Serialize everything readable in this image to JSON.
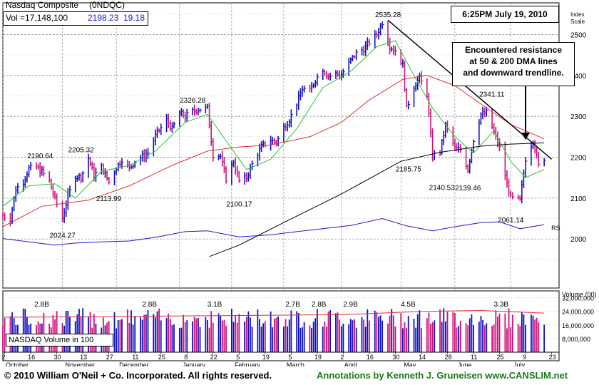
{
  "header": {
    "title": "Nasdaq Composite",
    "symbol": "(0NDQC)",
    "volume_label": "Vol =17,148,100",
    "price": "2198.23",
    "change": "19.18",
    "timestamp": "6:25PM July 19, 2010",
    "index_scale_label": "Index\nScale"
  },
  "note": {
    "line1": "Encountered resistance",
    "line2": "at 50 & 200 DMA lines",
    "line3": "and downward trendline."
  },
  "volume_box_label": "NASDAQ Volume in 100",
  "volume_axis_title": "Volume (00)",
  "footer": {
    "copyright": "© 2010 William O'Neil + Co. Incorporated. All rights reserved.",
    "annotation": "Annotations by Kenneth J. Gruneisen www.CANSLIM.net"
  },
  "colors": {
    "up_bar": "#1010c0",
    "down_bar": "#d0107a",
    "ma50": "#e03030",
    "ma10": "#30c030",
    "ma200": "#000000",
    "rs_line": "#1a1ad0",
    "panel_bg": "#ffffff",
    "grid": "#808080"
  },
  "chart_data": {
    "type": "line",
    "title": "Nasdaq Composite",
    "ylim": [
      1900,
      2550
    ],
    "y_ticks": [
      2000,
      2100,
      2200,
      2300,
      2400,
      2500
    ],
    "volume_ticks": [
      "8,000,000",
      "16,000,000",
      "24,000,000",
      "32,000,000"
    ],
    "volume_ylim": [
      0,
      36000000
    ],
    "months": [
      {
        "label": "October",
        "date": "2009-10-01"
      },
      {
        "label": "November",
        "date": "2009-11-02"
      },
      {
        "label": "December",
        "date": "2009-12-01"
      },
      {
        "label": "January",
        "date": "2010-01-04"
      },
      {
        "label": "February",
        "date": "2010-02-01"
      },
      {
        "label": "March",
        "date": "2010-03-01"
      },
      {
        "label": "April",
        "date": "2010-04-01"
      },
      {
        "label": "May",
        "date": "2010-05-03"
      },
      {
        "label": "June",
        "date": "2010-06-01"
      },
      {
        "label": "July",
        "date": "2010-07-01"
      }
    ],
    "day_ticks": [
      "2",
      "16",
      "30",
      "13",
      "27",
      "11",
      "25",
      "8",
      "22",
      "5",
      "19",
      "5",
      "19",
      "2",
      "16",
      "30",
      "14",
      "28",
      "11",
      "25",
      "9",
      "23"
    ],
    "x_start": "2009-10-01",
    "x_end": "2010-07-19",
    "price_labels": [
      {
        "text": "2190.64",
        "date": "2009-10-21",
        "value": 2190.64
      },
      {
        "text": "2024.27",
        "date": "2009-11-02",
        "value": 2024.27
      },
      {
        "text": "2205.32",
        "date": "2009-11-12",
        "value": 2205.32
      },
      {
        "text": "2113.99",
        "date": "2009-11-27",
        "value": 2113.99
      },
      {
        "text": "2326.28",
        "date": "2010-01-11",
        "value": 2326.28
      },
      {
        "text": "2100.17",
        "date": "2010-02-05",
        "value": 2100.17
      },
      {
        "text": "2535.28",
        "date": "2010-04-26",
        "value": 2535.28
      },
      {
        "text": "2185.75",
        "date": "2010-05-07",
        "value": 2185.75
      },
      {
        "text": "2140.53",
        "date": "2010-05-25",
        "value": 2140.53
      },
      {
        "text": "2139.46",
        "date": "2010-06-08",
        "value": 2139.46
      },
      {
        "text": "2341.11",
        "date": "2010-06-21",
        "value": 2341.11
      },
      {
        "text": "2061.14",
        "date": "2010-07-01",
        "value": 2061.14
      }
    ],
    "volume_labels": [
      {
        "text": "2.8B",
        "date": "2009-10-21"
      },
      {
        "text": "2.8B",
        "date": "2009-12-18"
      },
      {
        "text": "3.1B",
        "date": "2010-01-22"
      },
      {
        "text": "2.7B",
        "date": "2010-03-05"
      },
      {
        "text": "2.8B",
        "date": "2010-03-19"
      },
      {
        "text": "2.9B",
        "date": "2010-04-05"
      },
      {
        "text": "4.5B",
        "date": "2010-05-06"
      },
      {
        "text": "3.3B",
        "date": "2010-06-25"
      }
    ],
    "price_series": [
      [
        "2009-10-01",
        2057
      ],
      [
        "2009-10-05",
        2049
      ],
      [
        "2009-10-08",
        2123
      ],
      [
        "2009-10-12",
        2140
      ],
      [
        "2009-10-15",
        2173
      ],
      [
        "2009-10-19",
        2176
      ],
      [
        "2009-10-22",
        2165
      ],
      [
        "2009-10-26",
        2141
      ],
      [
        "2009-10-29",
        2097
      ],
      [
        "2009-11-02",
        2050
      ],
      [
        "2009-11-05",
        2105
      ],
      [
        "2009-11-09",
        2154
      ],
      [
        "2009-11-12",
        2150
      ],
      [
        "2009-11-16",
        2197
      ],
      [
        "2009-11-19",
        2156
      ],
      [
        "2009-11-23",
        2176
      ],
      [
        "2009-11-27",
        2138
      ],
      [
        "2009-12-01",
        2175
      ],
      [
        "2009-12-04",
        2194
      ],
      [
        "2009-12-08",
        2172
      ],
      [
        "2009-12-11",
        2190
      ],
      [
        "2009-12-15",
        2202
      ],
      [
        "2009-12-18",
        2211
      ],
      [
        "2009-12-22",
        2252
      ],
      [
        "2009-12-28",
        2291
      ],
      [
        "2009-12-31",
        2269
      ],
      [
        "2010-01-04",
        2308
      ],
      [
        "2010-01-07",
        2300
      ],
      [
        "2010-01-11",
        2312
      ],
      [
        "2010-01-14",
        2317
      ],
      [
        "2010-01-19",
        2320
      ],
      [
        "2010-01-22",
        2205
      ],
      [
        "2010-01-26",
        2203
      ],
      [
        "2010-01-29",
        2147
      ],
      [
        "2010-02-02",
        2190
      ],
      [
        "2010-02-05",
        2141
      ],
      [
        "2010-02-09",
        2150
      ],
      [
        "2010-02-12",
        2183
      ],
      [
        "2010-02-17",
        2226
      ],
      [
        "2010-02-22",
        2242
      ],
      [
        "2010-02-25",
        2235
      ],
      [
        "2010-03-01",
        2273
      ],
      [
        "2010-03-04",
        2292
      ],
      [
        "2010-03-08",
        2332
      ],
      [
        "2010-03-11",
        2368
      ],
      [
        "2010-03-15",
        2362
      ],
      [
        "2010-03-18",
        2389
      ],
      [
        "2010-03-22",
        2415
      ],
      [
        "2010-03-25",
        2397
      ],
      [
        "2010-03-29",
        2404
      ],
      [
        "2010-04-01",
        2402
      ],
      [
        "2010-04-06",
        2436
      ],
      [
        "2010-04-09",
        2454
      ],
      [
        "2010-04-13",
        2465
      ],
      [
        "2010-04-16",
        2481
      ],
      [
        "2010-04-20",
        2500
      ],
      [
        "2010-04-23",
        2530
      ],
      [
        "2010-04-27",
        2471
      ],
      [
        "2010-04-30",
        2461
      ],
      [
        "2010-05-04",
        2425
      ],
      [
        "2010-05-06",
        2319
      ],
      [
        "2010-05-10",
        2374
      ],
      [
        "2010-05-13",
        2394
      ],
      [
        "2010-05-17",
        2354
      ],
      [
        "2010-05-20",
        2204
      ],
      [
        "2010-05-24",
        2213
      ],
      [
        "2010-05-27",
        2277
      ],
      [
        "2010-06-01",
        2222
      ],
      [
        "2010-06-04",
        2219
      ],
      [
        "2010-06-08",
        2170
      ],
      [
        "2010-06-11",
        2243
      ],
      [
        "2010-06-15",
        2305
      ],
      [
        "2010-06-18",
        2309
      ],
      [
        "2010-06-22",
        2262
      ],
      [
        "2010-06-25",
        2223
      ],
      [
        "2010-06-29",
        2135
      ],
      [
        "2010-07-01",
        2101
      ],
      [
        "2010-07-06",
        2094
      ],
      [
        "2010-07-09",
        2196
      ],
      [
        "2010-07-13",
        2242
      ],
      [
        "2010-07-16",
        2179
      ],
      [
        "2010-07-19",
        2198
      ]
    ],
    "ma10": [
      [
        "2009-10-01",
        2080
      ],
      [
        "2009-10-15",
        2130
      ],
      [
        "2009-10-29",
        2135
      ],
      [
        "2009-11-09",
        2100
      ],
      [
        "2009-11-23",
        2165
      ],
      [
        "2009-12-08",
        2180
      ],
      [
        "2009-12-22",
        2215
      ],
      [
        "2010-01-07",
        2285
      ],
      [
        "2010-01-19",
        2305
      ],
      [
        "2010-01-29",
        2240
      ],
      [
        "2010-02-09",
        2170
      ],
      [
        "2010-02-22",
        2195
      ],
      [
        "2010-03-08",
        2270
      ],
      [
        "2010-03-22",
        2370
      ],
      [
        "2010-04-06",
        2410
      ],
      [
        "2010-04-20",
        2470
      ],
      [
        "2010-04-30",
        2485
      ],
      [
        "2010-05-10",
        2400
      ],
      [
        "2010-05-20",
        2320
      ],
      [
        "2010-06-01",
        2250
      ],
      [
        "2010-06-11",
        2210
      ],
      [
        "2010-06-22",
        2265
      ],
      [
        "2010-07-01",
        2190
      ],
      [
        "2010-07-09",
        2150
      ],
      [
        "2010-07-19",
        2170
      ]
    ],
    "ma50": [
      [
        "2009-10-01",
        2030
      ],
      [
        "2009-10-22",
        2080
      ],
      [
        "2009-11-16",
        2095
      ],
      [
        "2009-12-08",
        2130
      ],
      [
        "2009-12-31",
        2180
      ],
      [
        "2010-01-19",
        2215
      ],
      [
        "2010-02-05",
        2225
      ],
      [
        "2010-02-22",
        2230
      ],
      [
        "2010-03-15",
        2250
      ],
      [
        "2010-04-01",
        2285
      ],
      [
        "2010-04-16",
        2340
      ],
      [
        "2010-05-04",
        2390
      ],
      [
        "2010-05-17",
        2400
      ],
      [
        "2010-06-01",
        2375
      ],
      [
        "2010-06-15",
        2330
      ],
      [
        "2010-07-01",
        2280
      ],
      [
        "2010-07-19",
        2245
      ]
    ],
    "ma200": [
      [
        "2010-01-20",
        1957
      ],
      [
        "2010-02-05",
        1985
      ],
      [
        "2010-03-01",
        2040
      ],
      [
        "2010-04-01",
        2110
      ],
      [
        "2010-05-03",
        2190
      ],
      [
        "2010-05-24",
        2212
      ],
      [
        "2010-06-15",
        2227
      ],
      [
        "2010-07-01",
        2232
      ],
      [
        "2010-07-19",
        2235
      ]
    ],
    "trendline": [
      [
        "2010-04-26",
        2535
      ],
      [
        "2010-07-23",
        2195
      ]
    ],
    "rs_line": [
      [
        "2009-10-01",
        2001
      ],
      [
        "2009-10-15",
        1993
      ],
      [
        "2009-10-29",
        1985
      ],
      [
        "2009-11-09",
        1990
      ],
      [
        "2009-11-23",
        1993
      ],
      [
        "2009-12-08",
        1995
      ],
      [
        "2009-12-22",
        2004
      ],
      [
        "2010-01-07",
        2018
      ],
      [
        "2010-01-19",
        2020
      ],
      [
        "2010-02-05",
        2005
      ],
      [
        "2010-02-22",
        2010
      ],
      [
        "2010-03-08",
        2018
      ],
      [
        "2010-03-22",
        2025
      ],
      [
        "2010-04-06",
        2033
      ],
      [
        "2010-04-23",
        2050
      ],
      [
        "2010-05-06",
        2032
      ],
      [
        "2010-05-20",
        2020
      ],
      [
        "2010-06-01",
        2030
      ],
      [
        "2010-06-15",
        2040
      ],
      [
        "2010-06-25",
        2042
      ],
      [
        "2010-07-06",
        2025
      ],
      [
        "2010-07-19",
        2035
      ]
    ],
    "rs_label": "RS",
    "volume_ma": [
      [
        "2009-10-01",
        20500000
      ],
      [
        "2009-12-01",
        21000000
      ],
      [
        "2010-02-01",
        21500000
      ],
      [
        "2010-04-01",
        22000000
      ],
      [
        "2010-05-15",
        24000000
      ],
      [
        "2010-06-15",
        24500000
      ],
      [
        "2010-07-19",
        23000000
      ]
    ]
  }
}
